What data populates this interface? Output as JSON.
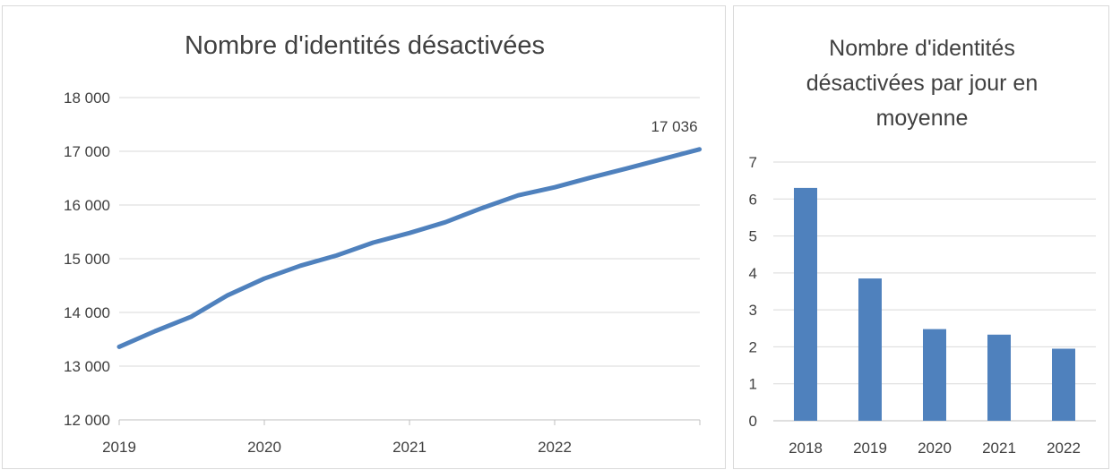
{
  "chart_data": [
    {
      "type": "line",
      "title": "Nombre d'identités désactivées",
      "xlabel": "",
      "ylabel": "",
      "x_ticks": [
        "2019",
        "2020",
        "2021",
        "2022"
      ],
      "y_ticks": [
        "12 000",
        "13 000",
        "14 000",
        "15 000",
        "16 000",
        "17 000",
        "18 000"
      ],
      "ylim": [
        12000,
        18000
      ],
      "xlim": [
        "2019-01-01",
        "2023-01-01"
      ],
      "grid": true,
      "series": [
        {
          "color": "#4f81bd",
          "x": [
            "2019-01-01",
            "2019-04-01",
            "2019-07-01",
            "2019-10-01",
            "2020-01-01",
            "2020-04-01",
            "2020-07-01",
            "2020-10-01",
            "2021-01-01",
            "2021-04-01",
            "2021-07-01",
            "2021-10-01",
            "2022-01-01",
            "2022-04-01",
            "2022-07-01",
            "2022-10-01",
            "2022-12-31"
          ],
          "values": [
            13360,
            13650,
            13920,
            14320,
            14630,
            14870,
            15060,
            15300,
            15480,
            15680,
            15940,
            16180,
            16330,
            16510,
            16680,
            16860,
            17036
          ]
        }
      ],
      "data_labels": [
        {
          "x": "2022-12-31",
          "text": "17 036"
        }
      ]
    },
    {
      "type": "bar",
      "title": "Nombre d'identités désactivées par jour en moyenne",
      "title_lines": [
        "Nombre d'identités",
        "désactivées par jour en",
        "moyenne"
      ],
      "xlabel": "",
      "ylabel": "",
      "categories": [
        "2018",
        "2019",
        "2020",
        "2021",
        "2022"
      ],
      "values": [
        6.3,
        3.85,
        2.48,
        2.33,
        1.95
      ],
      "y_ticks": [
        "0",
        "1",
        "2",
        "3",
        "4",
        "5",
        "6",
        "7"
      ],
      "ylim": [
        0,
        7
      ],
      "grid": true,
      "color": "#4f81bd"
    }
  ]
}
